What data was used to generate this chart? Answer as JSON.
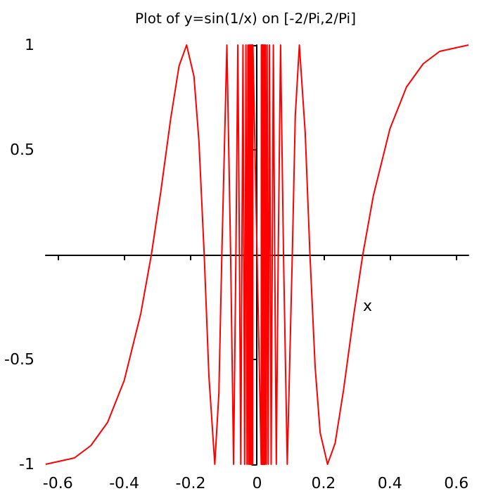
{
  "chart_data": {
    "type": "line",
    "title": "Plot of y=sin(1/x) on [-2/Pi,2/Pi]",
    "xlabel": "x",
    "x": [
      -0.6366,
      -0.55,
      -0.5,
      -0.45,
      -0.4,
      -0.35,
      -0.3183,
      -0.29,
      -0.26,
      -0.235,
      -0.2122,
      -0.19,
      -0.175,
      -0.1592,
      -0.145,
      -0.1273,
      -0.115,
      -0.1061,
      -0.0909,
      -0.0796,
      -0.0707,
      -0.0637,
      -0.0579,
      -0.0531,
      -0.049,
      -0.0424,
      -0.0374,
      -0.0335,
      -0.0303,
      -0.0277,
      -0.0255,
      -0.0236,
      -0.0219,
      -0.0205,
      -0.0193,
      -0.0182,
      -0.0172,
      -0.0163,
      -0.0155,
      -0.0148,
      -0.0141,
      -0.0135,
      -0.013,
      -0.0125,
      0.0125,
      0.013,
      0.0135,
      0.0141,
      0.0148,
      0.0155,
      0.0163,
      0.0172,
      0.0182,
      0.0193,
      0.0205,
      0.0219,
      0.0236,
      0.0255,
      0.0277,
      0.0303,
      0.0335,
      0.0374,
      0.0424,
      0.049,
      0.0531,
      0.0579,
      0.0637,
      0.0707,
      0.0796,
      0.0909,
      0.1061,
      0.115,
      0.1273,
      0.145,
      0.1592,
      0.175,
      0.19,
      0.2122,
      0.235,
      0.26,
      0.29,
      0.3183,
      0.35,
      0.4,
      0.45,
      0.5,
      0.55,
      0.6366
    ],
    "series": [
      {
        "color": "#ff0000",
        "values": [
          -1,
          -0.97,
          -0.91,
          -0.8,
          -0.6,
          -0.28,
          0,
          0.3,
          0.65,
          0.9,
          1,
          0.85,
          0.54,
          0,
          -0.58,
          -1,
          -0.66,
          0,
          1,
          0,
          -1,
          0,
          1,
          0,
          -1,
          1,
          -1,
          1,
          -1,
          1,
          -1,
          1,
          -1,
          1,
          -1,
          1,
          -1,
          1,
          -1,
          1,
          -1,
          1,
          -1,
          1,
          -1,
          1,
          -1,
          1,
          -1,
          1,
          -1,
          1,
          -1,
          1,
          -1,
          1,
          -1,
          1,
          -1,
          1,
          -1,
          1,
          -1,
          1,
          0,
          -1,
          0,
          1,
          0,
          -1,
          0,
          0.66,
          1,
          0.58,
          0,
          -0.54,
          -0.85,
          -1,
          -0.9,
          -0.65,
          -0.3,
          0,
          0.28,
          0.6,
          0.8,
          0.91,
          0.97,
          1
        ]
      }
    ],
    "xlim": [
      -0.6366,
      0.6366
    ],
    "xticks": [
      -0.6,
      -0.4,
      -0.2,
      0,
      0.2,
      0.4,
      0.6
    ],
    "ylim": [
      -1,
      1
    ],
    "yticks": [
      -1,
      -0.5,
      0.5,
      1
    ],
    "marker": "none",
    "line_style": "solid"
  }
}
